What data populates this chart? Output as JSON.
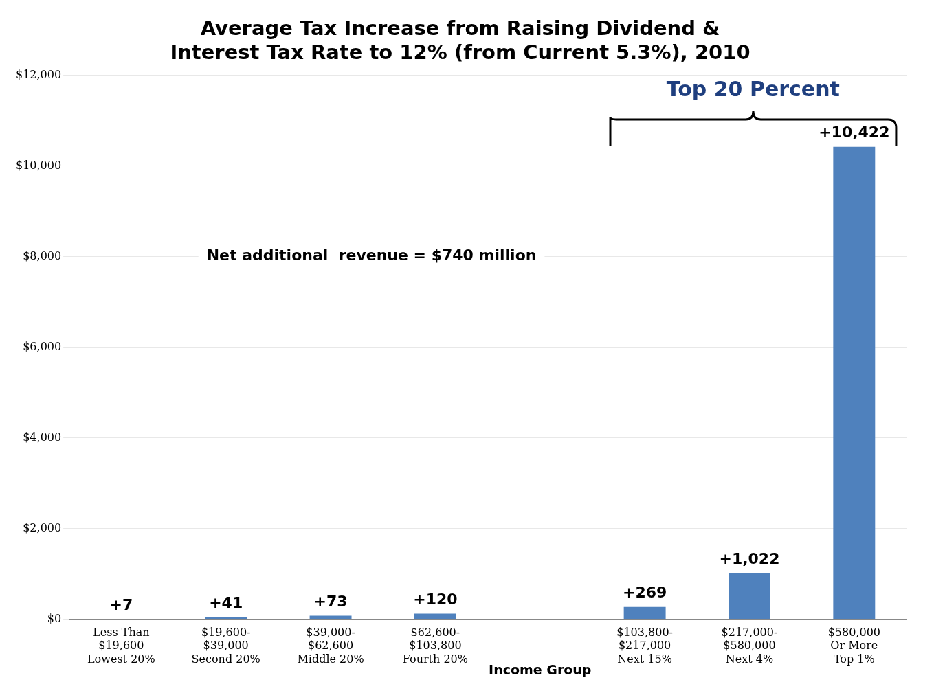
{
  "chart_data": {
    "type": "bar",
    "title": "Average Tax Increase from Raising Dividend & Interest Tax Rate to 12% (from Current 5.3%), 2010",
    "xlabel": "Income Group",
    "categories": [
      "Less Than\n$19,600\nLowest 20%",
      "$19,600-\n$39,000\nSecond 20%",
      "$39,000-\n$62,600\nMiddle 20%",
      "$62,600-\n$103,800\nFourth 20%",
      null,
      "$103,800-\n$217,000\nNext 15%",
      "$217,000-\n$580,000\nNext 4%",
      "$580,000\nOr More\nTop 1%"
    ],
    "values": [
      7,
      41,
      73,
      120,
      null,
      269,
      1022,
      10422
    ],
    "value_labels": [
      "+7",
      "+41",
      "+73",
      "+120",
      null,
      "+269",
      "+1,022",
      "+10,422"
    ],
    "color": "#4f81bd",
    "ylim": [
      0,
      12000
    ],
    "yticks": [
      {
        "value": 0,
        "label": "$0"
      },
      {
        "value": 2000,
        "label": "$2,000"
      },
      {
        "value": 4000,
        "label": "$4,000"
      },
      {
        "value": 6000,
        "label": "$6,000"
      },
      {
        "value": 8000,
        "label": "$8,000"
      },
      {
        "value": 10000,
        "label": "$10,000"
      },
      {
        "value": 12000,
        "label": "$12,000"
      }
    ],
    "grid": "y",
    "legend": false,
    "annotations": [
      "Net additional  revenue = $740 million",
      "Top 20 Percent"
    ]
  }
}
